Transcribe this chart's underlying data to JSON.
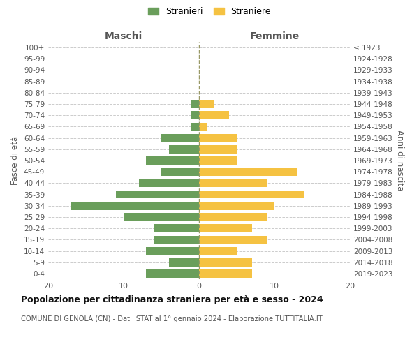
{
  "age_groups": [
    "0-4",
    "5-9",
    "10-14",
    "15-19",
    "20-24",
    "25-29",
    "30-34",
    "35-39",
    "40-44",
    "45-49",
    "50-54",
    "55-59",
    "60-64",
    "65-69",
    "70-74",
    "75-79",
    "80-84",
    "85-89",
    "90-94",
    "95-99",
    "100+"
  ],
  "birth_years": [
    "2019-2023",
    "2014-2018",
    "2009-2013",
    "2004-2008",
    "1999-2003",
    "1994-1998",
    "1989-1993",
    "1984-1988",
    "1979-1983",
    "1974-1978",
    "1969-1973",
    "1964-1968",
    "1959-1963",
    "1954-1958",
    "1949-1953",
    "1944-1948",
    "1939-1943",
    "1934-1938",
    "1929-1933",
    "1924-1928",
    "≤ 1923"
  ],
  "maschi": [
    7,
    4,
    7,
    6,
    6,
    10,
    17,
    11,
    8,
    5,
    7,
    4,
    5,
    1,
    1,
    1,
    0,
    0,
    0,
    0,
    0
  ],
  "femmine": [
    7,
    7,
    5,
    9,
    7,
    9,
    10,
    14,
    9,
    13,
    5,
    5,
    5,
    1,
    4,
    2,
    0,
    0,
    0,
    0,
    0
  ],
  "color_maschi": "#6a9e5b",
  "color_femmine": "#f5c242",
  "title_main": "Popolazione per cittadinanza straniera per età e sesso - 2024",
  "title_sub": "COMUNE DI GENOLA (CN) - Dati ISTAT al 1° gennaio 2024 - Elaborazione TUTTITALIA.IT",
  "legend_maschi": "Stranieri",
  "legend_femmine": "Straniere",
  "xlabel_left": "Maschi",
  "xlabel_right": "Femmine",
  "ylabel_left": "Fasce di età",
  "ylabel_right": "Anni di nascita",
  "xlim": 20,
  "background_color": "#ffffff",
  "grid_color": "#cccccc",
  "tick_color": "#999999",
  "label_color": "#555555"
}
